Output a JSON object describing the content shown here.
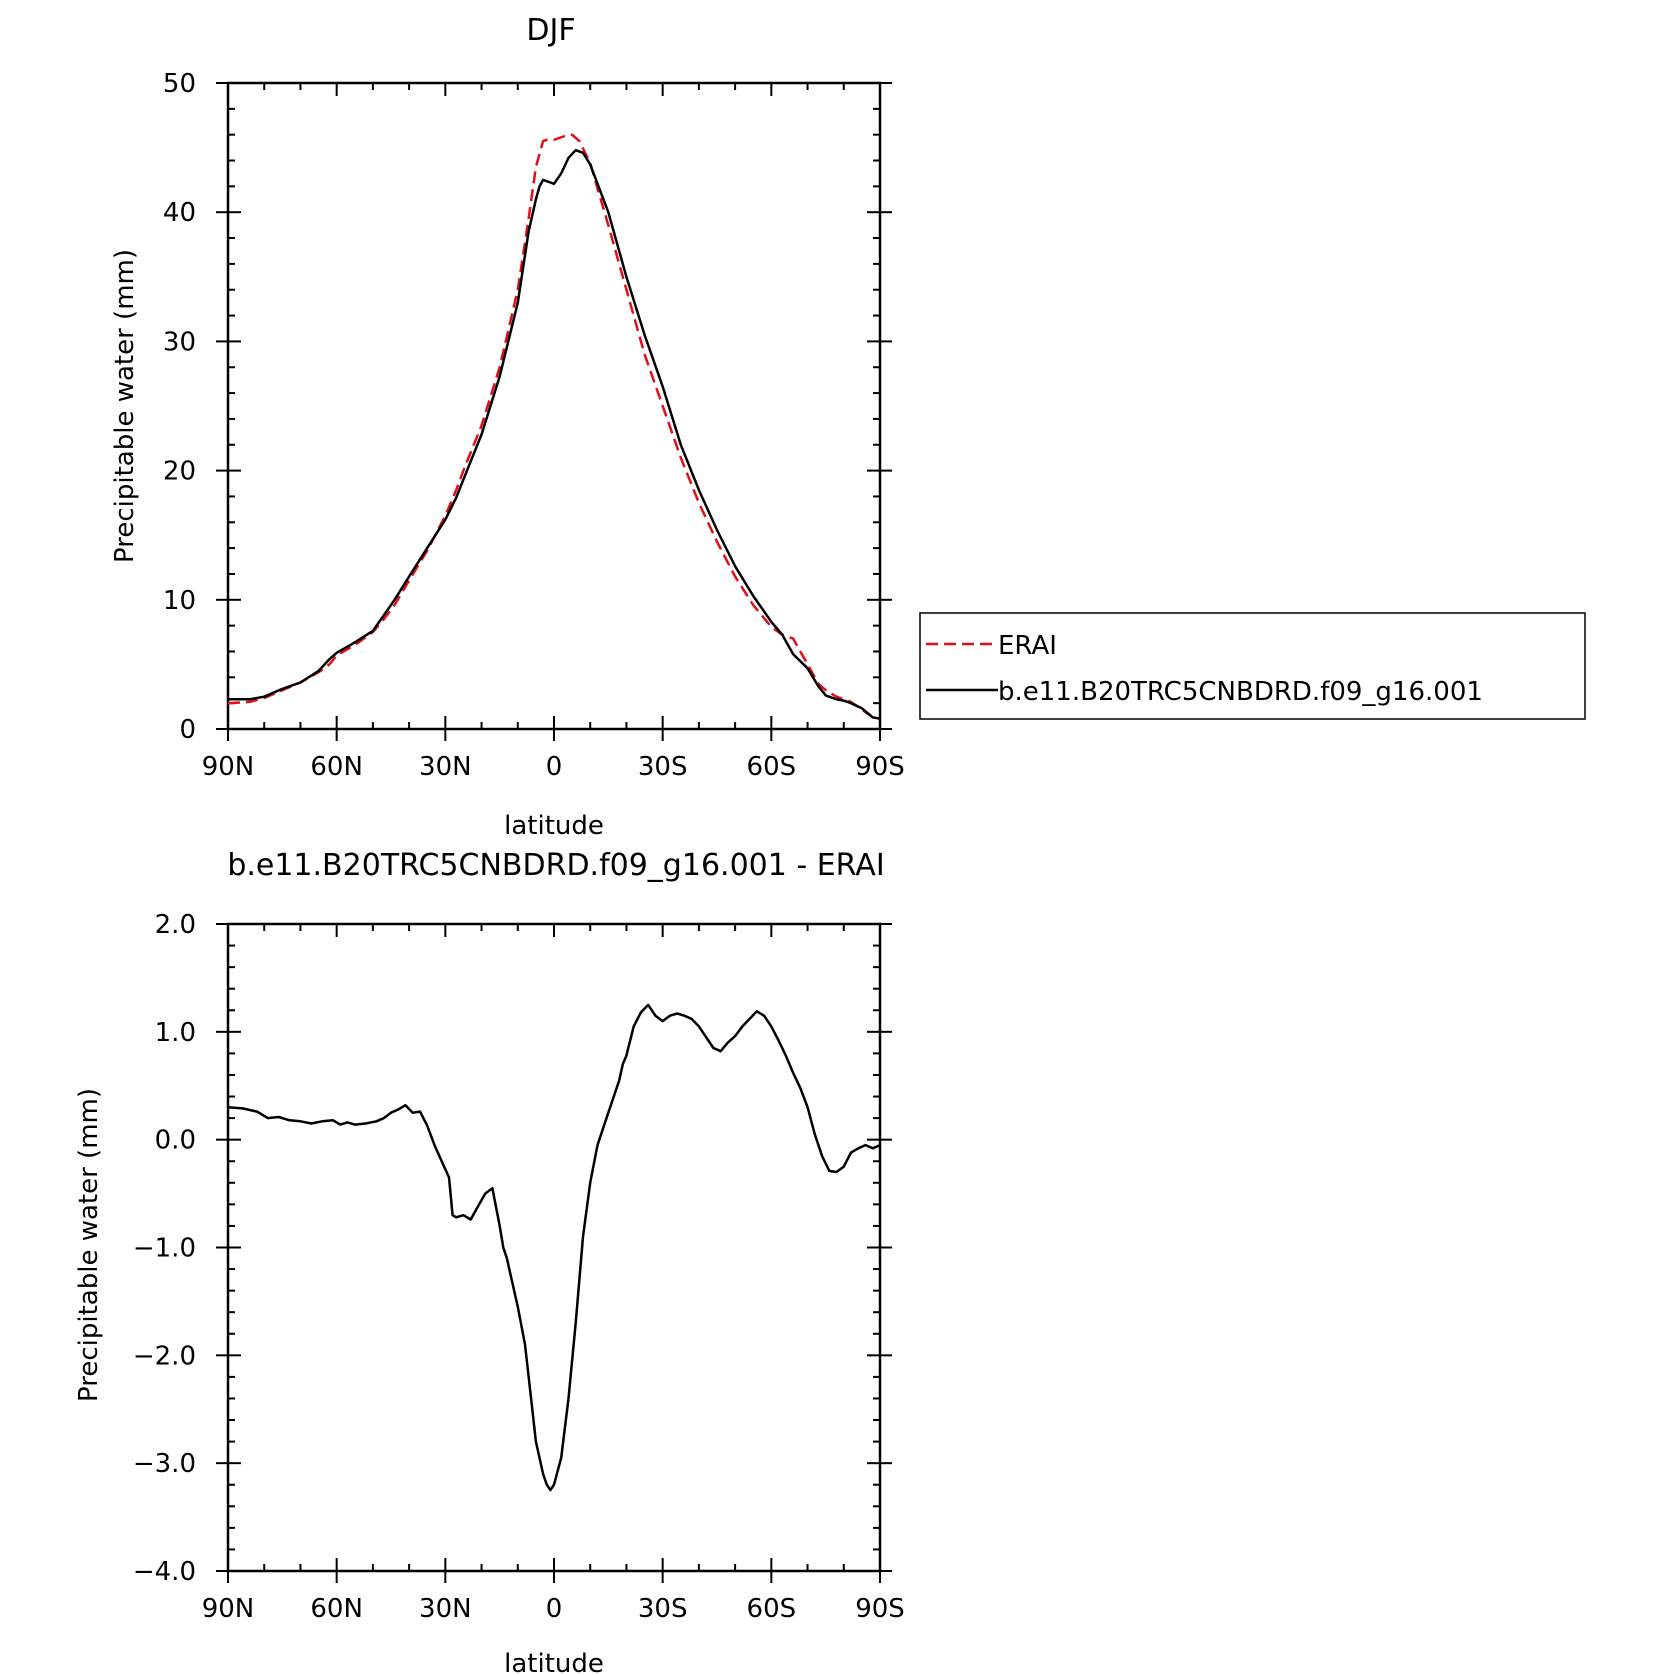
{
  "chart_data": [
    {
      "type": "line",
      "title": "DJF",
      "xlabel": "latitude",
      "ylabel": "Precipitable water (mm)",
      "xlim": [
        90,
        -90
      ],
      "ylim": [
        0,
        50
      ],
      "x_ticks": [
        90,
        60,
        30,
        0,
        -30,
        -60,
        -90
      ],
      "x_tick_labels": [
        "90N",
        "60N",
        "30N",
        "0",
        "30S",
        "60S",
        "90S"
      ],
      "y_ticks": [
        0,
        10,
        20,
        30,
        40,
        50
      ],
      "y_tick_labels": [
        "0",
        "10",
        "20",
        "30",
        "40",
        "50"
      ],
      "legend": {
        "position": "right",
        "entries": [
          "ERAI",
          "b.e11.B20TRC5CNBDRD.f09_g16.001"
        ]
      },
      "series": [
        {
          "name": "ERAI",
          "color": "#e0101a",
          "dash": true,
          "x": [
            90,
            84,
            80,
            75,
            70,
            65,
            62,
            60,
            55,
            50,
            47,
            44,
            40,
            35,
            30,
            27,
            25,
            20,
            15,
            10,
            7,
            5,
            3,
            2,
            0,
            -3,
            -5,
            -7,
            -10,
            -15,
            -20,
            -25,
            -30,
            -35,
            -40,
            -45,
            -50,
            -55,
            -60,
            -63,
            -66,
            -70,
            -73,
            -75,
            -78,
            -80,
            -82,
            -85,
            -88,
            -90
          ],
          "y": [
            2.0,
            2.1,
            2.4,
            3.0,
            3.6,
            4.4,
            5.0,
            5.7,
            6.5,
            7.5,
            8.5,
            9.6,
            11.5,
            13.8,
            16.5,
            18.5,
            20.0,
            23.5,
            28.0,
            34.0,
            39.5,
            43.5,
            45.5,
            45.6,
            45.6,
            45.9,
            46.0,
            45.5,
            43.8,
            39.0,
            34.0,
            29.0,
            25.0,
            21.0,
            17.5,
            14.5,
            11.8,
            9.6,
            7.9,
            7.3,
            7.0,
            5.0,
            3.5,
            3.0,
            2.5,
            2.3,
            2.1,
            1.5,
            0.9,
            0.8
          ]
        },
        {
          "name": "b.e11.B20TRC5CNBDRD.f09_g16.001",
          "color": "#000000",
          "dash": false,
          "x": [
            90,
            84,
            80,
            75,
            70,
            65,
            62,
            60,
            55,
            50,
            47,
            44,
            40,
            35,
            30,
            27,
            25,
            20,
            15,
            10,
            7,
            5,
            4,
            3,
            1,
            0,
            -2,
            -4,
            -6,
            -8,
            -10,
            -15,
            -20,
            -25,
            -30,
            -35,
            -40,
            -45,
            -50,
            -55,
            -60,
            -63,
            -66,
            -70,
            -73,
            -75,
            -78,
            -80,
            -82,
            -85,
            -88,
            -90
          ],
          "y": [
            2.3,
            2.3,
            2.5,
            3.1,
            3.6,
            4.5,
            5.4,
            5.9,
            6.7,
            7.6,
            8.8,
            10.0,
            11.8,
            14.0,
            16.2,
            17.9,
            19.3,
            22.8,
            27.3,
            33.0,
            38.5,
            41.0,
            42.0,
            42.5,
            42.3,
            42.2,
            43.0,
            44.2,
            44.8,
            44.6,
            43.7,
            40.0,
            35.0,
            30.5,
            26.5,
            22.0,
            18.5,
            15.4,
            12.6,
            10.3,
            8.3,
            7.3,
            5.8,
            4.7,
            3.3,
            2.6,
            2.3,
            2.2,
            2.0,
            1.6,
            0.9,
            0.8
          ]
        }
      ]
    },
    {
      "type": "line",
      "title": "b.e11.B20TRC5CNBDRD.f09_g16.001 - ERAI",
      "xlabel": "latitude",
      "ylabel": "Precipitable water (mm)",
      "xlim": [
        90,
        -90
      ],
      "ylim": [
        -4,
        2
      ],
      "x_ticks": [
        90,
        60,
        30,
        0,
        -30,
        -60,
        -90
      ],
      "x_tick_labels": [
        "90N",
        "60N",
        "30N",
        "0",
        "30S",
        "60S",
        "90S"
      ],
      "y_ticks": [
        -4,
        -3,
        -2,
        -1,
        0,
        1,
        2
      ],
      "y_tick_labels": [
        "−4.0",
        "−3.0",
        "−2.0",
        "−1.0",
        "0.0",
        "1.0",
        "2.0"
      ],
      "series": [
        {
          "color": "#000000",
          "dash": false,
          "x": [
            90,
            86,
            82,
            79,
            76,
            73,
            70,
            67,
            64,
            61,
            59,
            57,
            55,
            52,
            49,
            47,
            45,
            43,
            41,
            39,
            37,
            35,
            33,
            31,
            29,
            28,
            27,
            25,
            23,
            21,
            19,
            17,
            15,
            14,
            13,
            12,
            10,
            8,
            6,
            5,
            4,
            3,
            2,
            1,
            0,
            -2,
            -4,
            -6,
            -8,
            -10,
            -12,
            -14,
            -15,
            -16,
            -17,
            -18,
            -19,
            -20,
            -22,
            -24,
            -26,
            -28,
            -30,
            -32,
            -34,
            -36,
            -38,
            -40,
            -42,
            -44,
            -46,
            -48,
            -50,
            -52,
            -54,
            -56,
            -58,
            -60,
            -62,
            -64,
            -66,
            -68,
            -70,
            -72,
            -74,
            -76,
            -78,
            -80,
            -82,
            -84,
            -86,
            -88,
            -90
          ],
          "y": [
            0.3,
            0.29,
            0.26,
            0.2,
            0.21,
            0.18,
            0.17,
            0.15,
            0.17,
            0.18,
            0.14,
            0.16,
            0.14,
            0.15,
            0.17,
            0.2,
            0.25,
            0.28,
            0.32,
            0.25,
            0.26,
            0.13,
            -0.05,
            -0.2,
            -0.35,
            -0.7,
            -0.72,
            -0.7,
            -0.74,
            -0.62,
            -0.5,
            -0.45,
            -0.8,
            -1.0,
            -1.1,
            -1.25,
            -1.55,
            -1.9,
            -2.5,
            -2.8,
            -2.95,
            -3.1,
            -3.2,
            -3.25,
            -3.2,
            -2.95,
            -2.4,
            -1.7,
            -0.9,
            -0.4,
            -0.05,
            0.15,
            0.25,
            0.35,
            0.45,
            0.55,
            0.7,
            0.78,
            1.05,
            1.18,
            1.25,
            1.15,
            1.1,
            1.15,
            1.17,
            1.15,
            1.12,
            1.05,
            0.95,
            0.85,
            0.82,
            0.9,
            0.96,
            1.05,
            1.12,
            1.19,
            1.15,
            1.05,
            0.92,
            0.78,
            0.62,
            0.48,
            0.3,
            0.05,
            -0.15,
            -0.29,
            -0.3,
            -0.25,
            -0.12,
            -0.08,
            -0.05,
            -0.08,
            -0.05
          ]
        }
      ]
    }
  ]
}
